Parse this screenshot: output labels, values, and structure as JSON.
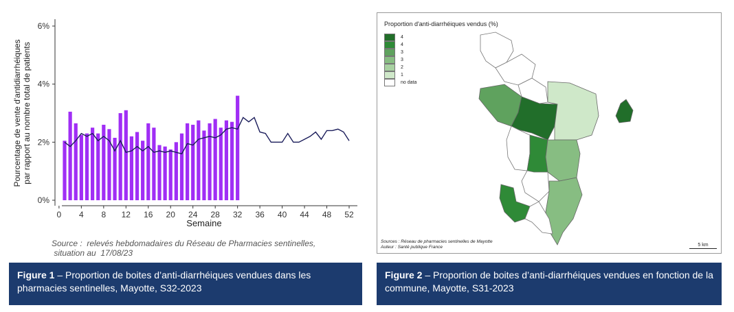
{
  "chart_data": [
    {
      "type": "bar",
      "ylabel": [
        "Pourcentage de vente d'antidiarrhéiques",
        "par rapport au nombre total de patients"
      ],
      "xlabel": "Semaine",
      "x_ticks": [
        0,
        4,
        8,
        12,
        16,
        20,
        24,
        28,
        32,
        36,
        40,
        44,
        48,
        52
      ],
      "y_ticks": [
        0,
        2,
        4,
        6
      ],
      "y_tick_labels": [
        "0%",
        "2%",
        "4%",
        "6%"
      ],
      "ylim": [
        0,
        6
      ],
      "xlim": [
        1,
        52
      ],
      "bar_color": "#a02ef5",
      "line_color": "#1a1c5a",
      "bars": {
        "weeks": [
          1,
          2,
          3,
          4,
          5,
          6,
          7,
          8,
          9,
          10,
          11,
          12,
          13,
          14,
          15,
          16,
          17,
          18,
          19,
          20,
          21,
          22,
          23,
          24,
          25,
          26,
          27,
          28,
          29,
          30,
          31,
          32
        ],
        "values": [
          2.05,
          3.05,
          2.65,
          2.25,
          2.3,
          2.5,
          2.3,
          2.6,
          2.45,
          2.15,
          3.0,
          3.1,
          2.2,
          2.35,
          2.05,
          2.65,
          2.5,
          1.9,
          1.85,
          1.75,
          2.0,
          2.3,
          2.65,
          2.6,
          2.75,
          2.4,
          2.65,
          2.8,
          2.5,
          2.75,
          2.7,
          3.6
        ]
      },
      "line": {
        "weeks": [
          1,
          2,
          3,
          4,
          5,
          6,
          7,
          8,
          9,
          10,
          11,
          12,
          13,
          14,
          15,
          16,
          17,
          18,
          19,
          20,
          21,
          22,
          23,
          24,
          25,
          26,
          27,
          28,
          29,
          30,
          31,
          32,
          33,
          34,
          35,
          36,
          37,
          38,
          39,
          40,
          41,
          42,
          43,
          44,
          45,
          46,
          47,
          48,
          49,
          50,
          51,
          52
        ],
        "values": [
          2.0,
          1.85,
          2.05,
          2.3,
          2.2,
          2.3,
          2.05,
          2.2,
          2.05,
          1.7,
          2.05,
          1.65,
          1.7,
          1.85,
          1.7,
          1.85,
          1.65,
          1.7,
          1.65,
          1.7,
          1.65,
          1.6,
          1.95,
          1.9,
          2.1,
          2.15,
          2.2,
          2.15,
          2.25,
          2.45,
          2.5,
          2.45,
          2.85,
          2.7,
          2.85,
          2.35,
          2.3,
          2.0,
          2.0,
          2.0,
          2.3,
          2.0,
          2.0,
          2.1,
          2.2,
          2.35,
          2.1,
          2.4,
          2.4,
          2.45,
          2.35,
          2.05
        ]
      }
    }
  ],
  "fig1": {
    "source_line1": "Source :  relevés hebdomadaires du Réseau de Pharmacies sentinelles,",
    "source_line2": " situation au  17/08/23",
    "caption_bold": "Figure 1",
    "caption_text": " – Proportion de boites d’anti-diarrhéiques vendues dans les pharmacies sentinelles, Mayotte, S32-2023"
  },
  "fig2": {
    "map_title": "Proportion d'anti-diarrhéiques vendus (%)",
    "legend": [
      {
        "label": "4",
        "color": "#216e2a"
      },
      {
        "label": "4",
        "color": "#2f8a37"
      },
      {
        "label": "3",
        "color": "#5fa25e"
      },
      {
        "label": "3",
        "color": "#87bd82"
      },
      {
        "label": "2",
        "color": "#a8d1a1"
      },
      {
        "label": "1",
        "color": "#cfe8c9"
      },
      {
        "label": "no data",
        "color": "#ffffff"
      }
    ],
    "source_line1": "Sources : Réseau de pharmacies sentinelles de Mayotte",
    "source_line2": "Auteur : Santé publique France",
    "scale_label": "5 km",
    "caption_bold": "Figure 2",
    "caption_text": " – Proportion de boites d’anti-diarrhéiques vendues en fonction de la commune, Mayotte, S31-2023"
  }
}
